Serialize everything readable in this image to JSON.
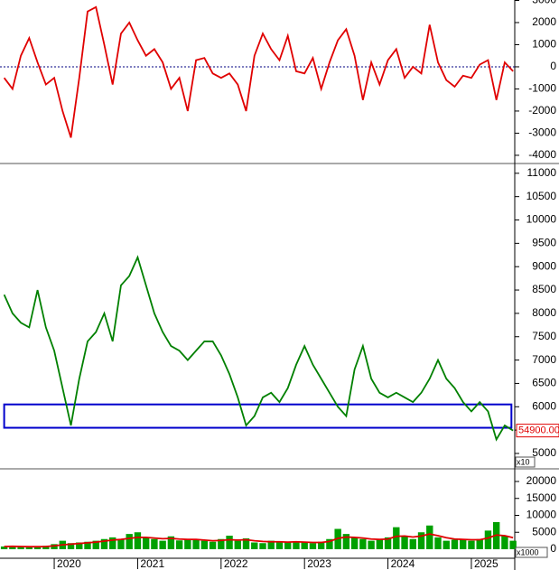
{
  "chart_data": [
    {
      "type": "line",
      "xlim": [
        2019.35,
        2025.52
      ],
      "ylim": [
        -4330,
        3020
      ],
      "yticks": [
        -4000,
        -3000,
        -2000,
        -1000,
        0,
        1000,
        2000,
        3000
      ],
      "hline": 0,
      "x": [
        2019.4,
        2019.5,
        2019.6,
        2019.7,
        2019.8,
        2019.9,
        2020.0,
        2020.1,
        2020.2,
        2020.3,
        2020.4,
        2020.5,
        2020.6,
        2020.7,
        2020.8,
        2020.9,
        2021.0,
        2021.1,
        2021.2,
        2021.3,
        2021.4,
        2021.5,
        2021.6,
        2021.7,
        2021.8,
        2021.9,
        2022.0,
        2022.1,
        2022.2,
        2022.3,
        2022.4,
        2022.5,
        2022.6,
        2022.7,
        2022.8,
        2022.9,
        2023.0,
        2023.1,
        2023.2,
        2023.3,
        2023.4,
        2023.5,
        2023.6,
        2023.7,
        2023.8,
        2023.9,
        2024.0,
        2024.1,
        2024.2,
        2024.3,
        2024.4,
        2024.5,
        2024.6,
        2024.7,
        2024.8,
        2024.9,
        2025.0,
        2025.1,
        2025.2,
        2025.3,
        2025.4,
        2025.5
      ],
      "series": [
        {
          "color": "#e00000",
          "values": [
            -500,
            -1000,
            500,
            1300,
            200,
            -800,
            -500,
            -2000,
            -3200,
            -500,
            2500,
            2700,
            1000,
            -800,
            1500,
            2000,
            1200,
            500,
            800,
            200,
            -1000,
            -500,
            -2000,
            300,
            400,
            -300,
            -500,
            -300,
            -800,
            -2000,
            500,
            1500,
            800,
            300,
            1400,
            -200,
            -300,
            400,
            -1000,
            200,
            1200,
            1700,
            500,
            -1500,
            200,
            -800,
            300,
            800,
            -500,
            0,
            -300,
            1900,
            200,
            -600,
            -900,
            -400,
            -500,
            100,
            300,
            -1500,
            200,
            -200
          ]
        }
      ]
    },
    {
      "type": "line",
      "xlim": [
        2019.35,
        2025.52
      ],
      "ylim": [
        4690,
        11190
      ],
      "yticks": [
        5000,
        5500,
        6000,
        6500,
        7000,
        7500,
        8000,
        8500,
        9000,
        9500,
        10000,
        10500,
        11000
      ],
      "multiplier": "x10",
      "box": {
        "x": [
          2019.4,
          2025.48
        ],
        "y": [
          5550,
          6050
        ],
        "color": "#0000cc"
      },
      "last_price": {
        "value": 5490,
        "label": "54900.00"
      },
      "x": [
        2019.4,
        2019.5,
        2019.6,
        2019.7,
        2019.8,
        2019.9,
        2020.0,
        2020.1,
        2020.2,
        2020.3,
        2020.4,
        2020.5,
        2020.6,
        2020.7,
        2020.8,
        2020.9,
        2021.0,
        2021.1,
        2021.2,
        2021.3,
        2021.4,
        2021.5,
        2021.6,
        2021.7,
        2021.8,
        2021.9,
        2022.0,
        2022.1,
        2022.2,
        2022.3,
        2022.4,
        2022.5,
        2022.6,
        2022.7,
        2022.8,
        2022.9,
        2023.0,
        2023.1,
        2023.2,
        2023.3,
        2023.4,
        2023.5,
        2023.6,
        2023.7,
        2023.8,
        2023.9,
        2024.0,
        2024.1,
        2024.2,
        2024.3,
        2024.4,
        2024.5,
        2024.6,
        2024.7,
        2024.8,
        2024.9,
        2025.0,
        2025.1,
        2025.2,
        2025.3,
        2025.4,
        2025.5
      ],
      "series": [
        {
          "color": "#008000",
          "values": [
            8400,
            8000,
            7800,
            7700,
            8500,
            7700,
            7200,
            6400,
            5600,
            6600,
            7400,
            7600,
            8000,
            7400,
            8600,
            8800,
            9200,
            8600,
            8000,
            7600,
            7300,
            7200,
            7000,
            7200,
            7400,
            7400,
            7100,
            6700,
            6200,
            5600,
            5800,
            6200,
            6300,
            6100,
            6400,
            6900,
            7300,
            6900,
            6600,
            6300,
            6000,
            5800,
            6800,
            7300,
            6600,
            6300,
            6200,
            6300,
            6200,
            6100,
            6300,
            6600,
            7000,
            6600,
            6400,
            6100,
            5900,
            6100,
            5900,
            5300,
            5600,
            5490
          ]
        }
      ]
    },
    {
      "type": "bar",
      "xlim": [
        2019.35,
        2025.52
      ],
      "ylim": [
        -2670,
        23470
      ],
      "yticks": [
        0,
        5000,
        10000,
        15000,
        20000
      ],
      "xticks": [
        2020,
        2021,
        2022,
        2023,
        2024,
        2025
      ],
      "multiplier": "x1000",
      "x": [
        2019.4,
        2019.5,
        2019.6,
        2019.7,
        2019.8,
        2019.9,
        2020.0,
        2020.1,
        2020.2,
        2020.3,
        2020.4,
        2020.5,
        2020.6,
        2020.7,
        2020.8,
        2020.9,
        2021.0,
        2021.1,
        2021.2,
        2021.3,
        2021.4,
        2021.5,
        2021.6,
        2021.7,
        2021.8,
        2021.9,
        2022.0,
        2022.1,
        2022.2,
        2022.3,
        2022.4,
        2022.5,
        2022.6,
        2022.7,
        2022.8,
        2022.9,
        2023.0,
        2023.1,
        2023.2,
        2023.3,
        2023.4,
        2023.5,
        2023.6,
        2023.7,
        2023.8,
        2023.9,
        2024.0,
        2024.1,
        2024.2,
        2024.3,
        2024.4,
        2024.5,
        2024.6,
        2024.7,
        2024.8,
        2024.9,
        2025.0,
        2025.1,
        2025.2,
        2025.3,
        2025.4,
        2025.5
      ],
      "series": [
        {
          "type": "bar",
          "color": "#00a000",
          "values": [
            800,
            900,
            700,
            600,
            800,
            1000,
            1500,
            2500,
            1800,
            2000,
            2200,
            2500,
            3000,
            3500,
            2800,
            4500,
            5000,
            3500,
            3000,
            2500,
            3800,
            2600,
            3000,
            2800,
            2500,
            2200,
            3000,
            4000,
            2500,
            3200,
            2000,
            1800,
            2500,
            2200,
            2000,
            2400,
            2000,
            1800,
            2200,
            3000,
            6000,
            4500,
            3500,
            3000,
            2500,
            3000,
            3500,
            6500,
            4000,
            3000,
            5000,
            7000,
            3500,
            2500,
            2800,
            3000,
            2500,
            3000,
            5500,
            8000,
            4000,
            2500
          ]
        },
        {
          "type": "line",
          "color": "#e00000",
          "values": [
            800,
            850,
            800,
            750,
            750,
            800,
            1000,
            1300,
            1500,
            1700,
            1900,
            2100,
            2400,
            2700,
            2900,
            3200,
            3500,
            3500,
            3300,
            3100,
            3200,
            3000,
            2900,
            2900,
            2700,
            2500,
            2600,
            2800,
            2700,
            2800,
            2500,
            2300,
            2200,
            2200,
            2100,
            2200,
            2100,
            2000,
            2000,
            2300,
            3200,
            3600,
            3500,
            3300,
            3000,
            2900,
            3000,
            3800,
            3900,
            3600,
            3900,
            4500,
            4000,
            3400,
            3000,
            2900,
            2800,
            2800,
            3300,
            4200,
            4000,
            3400
          ]
        }
      ]
    }
  ]
}
